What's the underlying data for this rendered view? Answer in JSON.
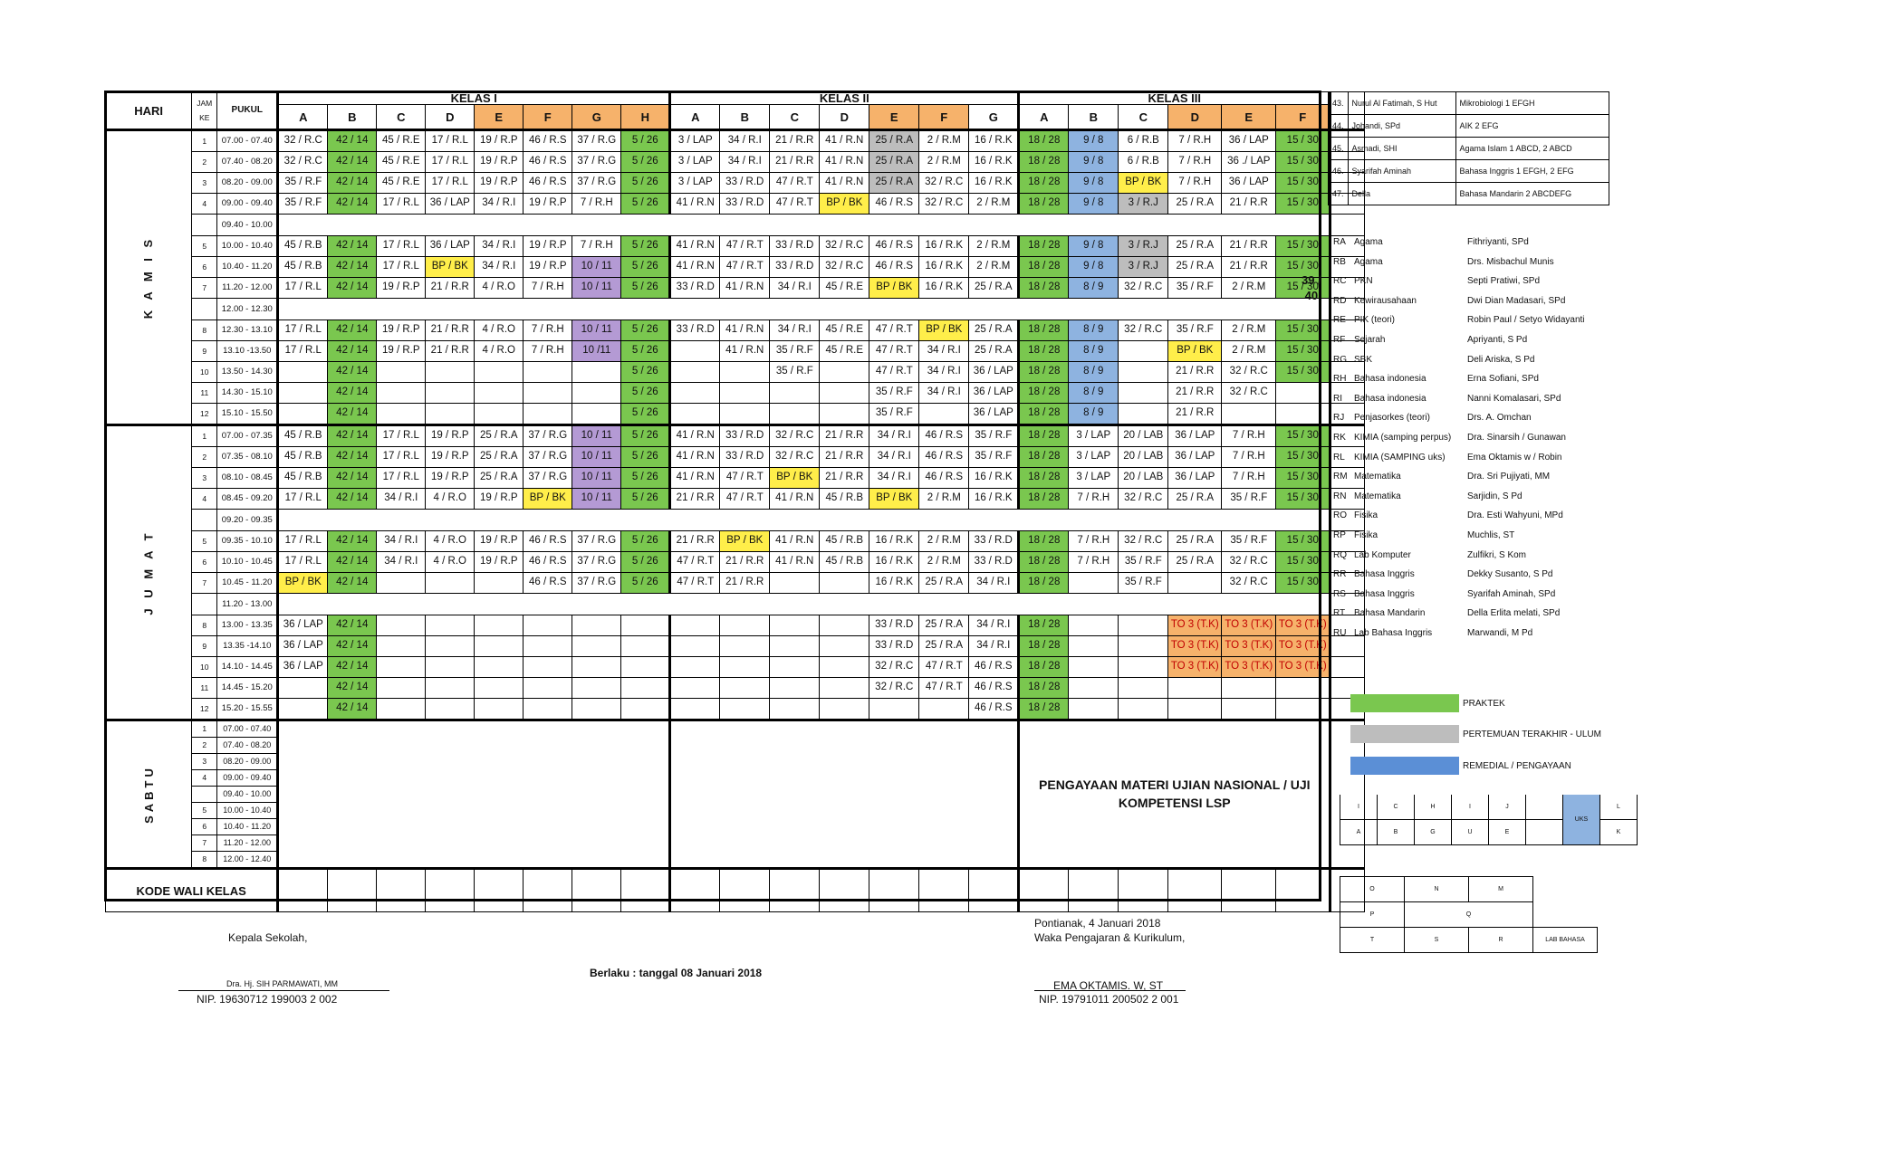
{
  "header": {
    "hari": "HARI",
    "jam": "JAM",
    "ke": "KE",
    "pukul": "PUKUL",
    "kelas1": "KELAS I",
    "kelas2": "KELAS II",
    "kelas3": "KELAS III",
    "sub1": [
      "A",
      "B",
      "C",
      "D",
      "E",
      "F",
      "G",
      "H"
    ],
    "sub2": [
      "A",
      "B",
      "C",
      "D",
      "E",
      "F",
      "G"
    ],
    "sub3": [
      "A",
      "B",
      "C",
      "D",
      "E",
      "F"
    ]
  },
  "days": {
    "kamis": "K A M I S",
    "jumat": "J U M A T",
    "sabtu": "SABTU"
  },
  "kamis_rows": [
    {
      "ke": "1",
      "pukul": "07.00 - 07.40",
      "c": [
        "32 / R.C",
        "42 / 14",
        "45 / R.E",
        "17 / R.L",
        "19 / R.P",
        "46 / R.S",
        "37 / R.G",
        "5 / 26",
        "3 / LAP",
        "34 / R.I",
        "21 / R.R",
        "41 / R.N",
        "25 / R.A",
        "2 / R.M",
        "16 / R.K",
        "18 / 28",
        "9 / 8",
        "6 / R.B",
        "7 / R.H",
        "36 / LAP",
        "15 / 30"
      ]
    },
    {
      "ke": "2",
      "pukul": "07.40 - 08.20",
      "c": [
        "32 / R.C",
        "42 / 14",
        "45 / R.E",
        "17 / R.L",
        "19 / R.P",
        "46 / R.S",
        "37 / R.G",
        "5 / 26",
        "3 / LAP",
        "34 / R.I",
        "21 / R.R",
        "41 / R.N",
        "25 / R.A",
        "2 / R.M",
        "16 / R.K",
        "18 / 28",
        "9 / 8",
        "6 / R.B",
        "7 / R.H",
        "36 ./ LAP",
        "15 / 30"
      ]
    },
    {
      "ke": "3",
      "pukul": "08.20 - 09.00",
      "c": [
        "35 / R.F",
        "42 / 14",
        "45 / R.E",
        "17 / R.L",
        "19 / R.P",
        "46 / R.S",
        "37 / R.G",
        "5 / 26",
        "3 / LAP",
        "33 / R.D",
        "47 / R.T",
        "41 / R.N",
        "25 / R.A",
        "32 / R.C",
        "16 / R.K",
        "18 / 28",
        "9 / 8",
        "BP / BK",
        "7 / R.H",
        "36 / LAP",
        "15 / 30"
      ]
    },
    {
      "ke": "4",
      "pukul": "09.00 - 09.40",
      "c": [
        "35 / R.F",
        "42 / 14",
        "17 / R.L",
        "36 / LAP",
        "34 / R.I",
        "19 / R.P",
        "7 / R.H",
        "5 / 26",
        "41 / R.N",
        "33 / R.D",
        "47 / R.T",
        "BP / BK",
        "46 / R.S",
        "32 / R.C",
        "2 / R.M",
        "18 / 28",
        "9 / 8",
        "3 / R.J",
        "25 / R.A",
        "21 / R.R",
        "15 / 30"
      ]
    },
    {
      "ke": "",
      "pukul": "09.40 - 10.00",
      "brk": true
    },
    {
      "ke": "5",
      "pukul": "10.00 - 10.40",
      "c": [
        "45 / R.B",
        "42 / 14",
        "17 / R.L",
        "36 / LAP",
        "34 / R.I",
        "19 / R.P",
        "7 / R.H",
        "5 / 26",
        "41 / R.N",
        "47 / R.T",
        "33 / R.D",
        "32 / R.C",
        "46 / R.S",
        "16 / R.K",
        "2 / R.M",
        "18 / 28",
        "9 / 8",
        "3 / R.J",
        "25 / R.A",
        "21 / R.R",
        "15 / 30"
      ]
    },
    {
      "ke": "6",
      "pukul": "10.40 - 11.20",
      "c": [
        "45 / R.B",
        "42 / 14",
        "17 / R.L",
        "BP / BK",
        "34 / R.I",
        "19 / R.P",
        "10 / 11",
        "5 / 26",
        "41 / R.N",
        "47 / R.T",
        "33 / R.D",
        "32 / R.C",
        "46 / R.S",
        "16 / R.K",
        "2 / R.M",
        "18 / 28",
        "9 / 8",
        "3 / R.J",
        "25 / R.A",
        "21 / R.R",
        "15 / 30"
      ]
    },
    {
      "ke": "7",
      "pukul": "11.20 - 12.00",
      "c": [
        "17 / R.L",
        "42 / 14",
        "19 / R.P",
        "21 / R.R",
        "4 / R.O",
        "7 / R.H",
        "10 / 11",
        "5 / 26",
        "33 / R.D",
        "41 / R.N",
        "34 / R.I",
        "45 / R.E",
        "BP / BK",
        "16 / R.K",
        "25 / R.A",
        "18 / 28",
        "8 / 9",
        "32 / R.C",
        "35 / R.F",
        "2 / R.M",
        "15 / 30"
      ]
    },
    {
      "ke": "",
      "pukul": "12.00 - 12.30",
      "brk": true
    },
    {
      "ke": "8",
      "pukul": "12.30 - 13.10",
      "c": [
        "17 / R.L",
        "42 / 14",
        "19 / R.P",
        "21 / R.R",
        "4 / R.O",
        "7 / R.H",
        "10 / 11",
        "5 / 26",
        "33 / R.D",
        "41 / R.N",
        "34 / R.I",
        "45 / R.E",
        "47 / R.T",
        "BP / BK",
        "25 / R.A",
        "18 / 28",
        "8 / 9",
        "32 / R.C",
        "35 / R.F",
        "2 / R.M",
        "15 / 30"
      ]
    },
    {
      "ke": "9",
      "pukul": "13.10 -13.50",
      "c": [
        "17 / R.L",
        "42 / 14",
        "19 / R.P",
        "21 / R.R",
        "4 / R.O",
        "7 / R.H",
        "10 /11",
        "5 / 26",
        "",
        "41 / R.N",
        "35 / R.F",
        "45 / R.E",
        "47 / R.T",
        "34 / R.I",
        "25 / R.A",
        "18 / 28",
        "8 / 9",
        "",
        "BP / BK",
        "2 / R.M",
        "15 / 30"
      ]
    },
    {
      "ke": "10",
      "pukul": "13.50 - 14.30",
      "c": [
        "",
        "42 / 14",
        "",
        "",
        "",
        "",
        "",
        "5 / 26",
        "",
        "",
        "35 / R.F",
        "",
        "47 / R.T",
        "34 / R.I",
        "36 / LAP",
        "18 / 28",
        "8 / 9",
        "",
        "21 / R.R",
        "32 / R.C",
        "15 / 30"
      ]
    },
    {
      "ke": "11",
      "pukul": "14.30 - 15.10",
      "c": [
        "",
        "42 / 14",
        "",
        "",
        "",
        "",
        "",
        "5 / 26",
        "",
        "",
        "",
        "",
        "35 / R.F",
        "34 / R.I",
        "36 / LAP",
        "18 / 28",
        "8 / 9",
        "",
        "21 / R.R",
        "32 / R.C",
        ""
      ]
    },
    {
      "ke": "12",
      "pukul": "15.10 - 15.50",
      "c": [
        "",
        "42 / 14",
        "",
        "",
        "",
        "",
        "",
        "5 / 26",
        "",
        "",
        "",
        "",
        "35 / R.F",
        "",
        "36 / LAP",
        "18 / 28",
        "8 / 9",
        "",
        "21 / R.R",
        "",
        ""
      ]
    }
  ],
  "jumat_rows": [
    {
      "ke": "1",
      "pukul": "07.00 - 07.35",
      "c": [
        "45 / R.B",
        "42 / 14",
        "17 / R.L",
        "19 / R.P",
        "25 / R.A",
        "37 / R.G",
        "10 / 11",
        "5 / 26",
        "41 / R.N",
        "33 / R.D",
        "32 / R.C",
        "21 / R.R",
        "34 / R.I",
        "46 / R.S",
        "35 / R.F",
        "18 / 28",
        "3 / LAP",
        "20 / LAB",
        "36 / LAP",
        "7 / R.H",
        "15 / 30"
      ]
    },
    {
      "ke": "2",
      "pukul": "07.35 - 08.10",
      "c": [
        "45 / R.B",
        "42 / 14",
        "17 / R.L",
        "19 / R.P",
        "25 / R.A",
        "37 / R.G",
        "10 / 11",
        "5 / 26",
        "41 / R.N",
        "33 / R.D",
        "32 / R.C",
        "21 / R.R",
        "34 / R.I",
        "46 / R.S",
        "35 / R.F",
        "18 / 28",
        "3 / LAP",
        "20 / LAB",
        "36 / LAP",
        "7 / R.H",
        "15 / 30"
      ]
    },
    {
      "ke": "3",
      "pukul": "08.10 - 08.45",
      "c": [
        "45 / R.B",
        "42 / 14",
        "17 / R.L",
        "19 / R.P",
        "25 / R.A",
        "37 / R.G",
        "10 / 11",
        "5 / 26",
        "41 / R.N",
        "47 / R.T",
        "BP / BK",
        "21 / R.R",
        "34 / R.I",
        "46 / R.S",
        "16 / R.K",
        "18 / 28",
        "3 / LAP",
        "20 / LAB",
        "36 / LAP",
        "7 / R.H",
        "15 / 30"
      ]
    },
    {
      "ke": "4",
      "pukul": "08.45 - 09.20",
      "c": [
        "17 / R.L",
        "42 / 14",
        "34 / R.I",
        "4 / R.O",
        "19 / R.P",
        "BP / BK",
        "10 / 11",
        "5 / 26",
        "21 / R.R",
        "47 / R.T",
        "41 / R.N",
        "45 / R.B",
        "BP / BK",
        "2 / R.M",
        "16 / R.K",
        "18 / 28",
        "7 / R.H",
        "32 / R.C",
        "25 / R.A",
        "35 / R.F",
        "15 / 30"
      ]
    },
    {
      "ke": "",
      "pukul": "09.20 - 09.35",
      "brk": true
    },
    {
      "ke": "5",
      "pukul": "09.35 - 10.10",
      "c": [
        "17 / R.L",
        "42 / 14",
        "34 / R.I",
        "4 / R.O",
        "19 / R.P",
        "46 / R.S",
        "37 / R.G",
        "5 / 26",
        "21 / R.R",
        "BP / BK",
        "41 / R.N",
        "45 / R.B",
        "16 / R.K",
        "2 / R.M",
        "33 / R.D",
        "18 / 28",
        "7 / R.H",
        "32 / R.C",
        "25 / R.A",
        "35 / R.F",
        "15 / 30"
      ]
    },
    {
      "ke": "6",
      "pukul": "10.10 - 10.45",
      "c": [
        "17 / R.L",
        "42 / 14",
        "34 / R.I",
        "4 / R.O",
        "19 / R.P",
        "46 / R.S",
        "37 / R.G",
        "5 / 26",
        "47 / R.T",
        "21 / R.R",
        "41 / R.N",
        "45 / R.B",
        "16 / R.K",
        "2 / R.M",
        "33 / R.D",
        "18 / 28",
        "7 / R.H",
        "35 / R.F",
        "25 / R.A",
        "32 / R.C",
        "15 / 30"
      ]
    },
    {
      "ke": "7",
      "pukul": "10.45 - 11.20",
      "c": [
        "BP / BK",
        "42 / 14",
        "",
        "",
        "",
        "46 / R.S",
        "37 / R.G",
        "5 / 26",
        "47 / R.T",
        "21 / R.R",
        "",
        "",
        "16 / R.K",
        "25 / R.A",
        "34 / R.I",
        "18 / 28",
        "",
        "35 / R.F",
        "",
        "32 / R.C",
        "15 / 30"
      ]
    },
    {
      "ke": "",
      "pukul": "11.20 - 13.00",
      "brk": true
    },
    {
      "ke": "8",
      "pukul": "13.00 - 13.35",
      "c": [
        "36 / LAP",
        "42 / 14",
        "",
        "",
        "",
        "",
        "",
        "",
        "",
        "",
        "",
        "",
        "33 / R.D",
        "25 / R.A",
        "34 / R.I",
        "18 / 28",
        "",
        "",
        "TO 3 (T.K)",
        "TO 3 (T.K)",
        "TO 3 (T.K)"
      ]
    },
    {
      "ke": "9",
      "pukul": "13.35 -14.10",
      "c": [
        "36 / LAP",
        "42 / 14",
        "",
        "",
        "",
        "",
        "",
        "",
        "",
        "",
        "",
        "",
        "33 / R.D",
        "25 / R.A",
        "34 / R.I",
        "18 / 28",
        "",
        "",
        "TO 3 (T.K)",
        "TO 3 (T.K)",
        "TO 3 (T.K)"
      ]
    },
    {
      "ke": "10",
      "pukul": "14.10 - 14.45",
      "c": [
        "36 / LAP",
        "42 / 14",
        "",
        "",
        "",
        "",
        "",
        "",
        "",
        "",
        "",
        "",
        "32 / R.C",
        "47 / R.T",
        "46 / R.S",
        "18 / 28",
        "",
        "",
        "TO 3 (T.K)",
        "TO 3 (T.K)",
        "TO 3 (T.K)"
      ]
    },
    {
      "ke": "11",
      "pukul": "14.45 - 15.20",
      "c": [
        "",
        "42 / 14",
        "",
        "",
        "",
        "",
        "",
        "",
        "",
        "",
        "",
        "",
        "32 / R.C",
        "47 / R.T",
        "46 / R.S",
        "18 / 28",
        "",
        "",
        "",
        "",
        ""
      ]
    },
    {
      "ke": "12",
      "pukul": "15.20 - 15.55",
      "c": [
        "",
        "42 / 14",
        "",
        "",
        "",
        "",
        "",
        "",
        "",
        "",
        "",
        "",
        "",
        "",
        "46 / R.S",
        "18 / 28",
        "",
        "",
        "",
        "",
        ""
      ]
    }
  ],
  "sabtu_rows": [
    {
      "ke": "1",
      "pukul": "07.00 - 07.40"
    },
    {
      "ke": "2",
      "pukul": "07.40 - 08.20"
    },
    {
      "ke": "3",
      "pukul": "08.20 - 09.00"
    },
    {
      "ke": "4",
      "pukul": "09.00 - 09.40"
    },
    {
      "ke": "",
      "pukul": "09.40 - 10.00"
    },
    {
      "ke": "5",
      "pukul": "10.00 - 10.40"
    },
    {
      "ke": "6",
      "pukul": "10.40 - 11.20"
    },
    {
      "ke": "7",
      "pukul": "11.20 - 12.00"
    },
    {
      "ke": "8",
      "pukul": "12.00 - 12.40"
    }
  ],
  "pengayaan": "PENGAYAAN MATERI UJIAN NASIONAL / UJI KOMPETENSI LSP",
  "kode_wali": "KODE WALI KELAS",
  "side_count": "39 / 40",
  "teachers": [
    {
      "no": "43.",
      "name": "Nurul Al Fatimah, S Hut",
      "subj": "Mikrobiologi 1 EFGH"
    },
    {
      "no": "44.",
      "name": "Johandi, SPd",
      "subj": "AIK 2 EFG"
    },
    {
      "no": "45.",
      "name": "Asmadi, SHI",
      "subj": "Agama Islam 1 ABCD, 2 ABCD"
    },
    {
      "no": "46.",
      "name": "Syarifah Aminah",
      "subj": "Bahasa Inggris 1 EFGH, 2 EFG"
    },
    {
      "no": "47.",
      "name": "Della",
      "subj": "Bahasa Mandarin 2 ABCDEFG"
    }
  ],
  "subjects": [
    {
      "code": "RA",
      "subj": "Agama",
      "teacher": "Fithriyanti, SPd"
    },
    {
      "code": "RB",
      "subj": "Agama",
      "teacher": "Drs. Misbachul Munis"
    },
    {
      "code": "RC",
      "subj": "PKN",
      "teacher": "Septi Pratiwi, SPd"
    },
    {
      "code": "RD",
      "subj": "Kewirausahaan",
      "teacher": "Dwi Dian Madasari, SPd"
    },
    {
      "code": "RE",
      "subj": "PIK (teori)",
      "teacher": "Robin Paul / Setyo Widayanti"
    },
    {
      "code": "RF",
      "subj": "Sejarah",
      "teacher": "Apriyanti, S Pd"
    },
    {
      "code": "RG",
      "subj": "SBK",
      "teacher": "Deli Ariska, S Pd"
    },
    {
      "code": "RH",
      "subj": "Bahasa indonesia",
      "teacher": "Erna Sofiani, SPd"
    },
    {
      "code": "RI",
      "subj": "Bahasa indonesia",
      "teacher": "Nanni Komalasari, SPd"
    },
    {
      "code": "RJ",
      "subj": "Penjasorkes (teori)",
      "teacher": "Drs. A. Omchan"
    },
    {
      "code": "RK",
      "subj": "KIMIA  (samping perpus)",
      "teacher": "Dra. Sinarsih / Gunawan"
    },
    {
      "code": "RL",
      "subj": "KIMIA (SAMPING uks)",
      "teacher": "Ema Oktamis w / Robin"
    },
    {
      "code": "RM",
      "subj": "Matematika",
      "teacher": "Dra. Sri Pujiyati, MM"
    },
    {
      "code": "RN",
      "subj": "Matematika",
      "teacher": "Sarjidin, S Pd"
    },
    {
      "code": "RO",
      "subj": "Fisika",
      "teacher": "Dra. Esti Wahyuni, MPd"
    },
    {
      "code": "RP",
      "subj": "Fisika",
      "teacher": "Muchlis, ST"
    },
    {
      "code": "RQ",
      "subj": "Lab Komputer",
      "teacher": "Zulfikri, S Kom"
    },
    {
      "code": "RR",
      "subj": "Bahasa Inggris",
      "teacher": "Dekky Susanto, S Pd"
    },
    {
      "code": "RS",
      "subj": "Bahasa Inggris",
      "teacher": "Syarifah Aminah, SPd"
    },
    {
      "code": "RT",
      "subj": "Bahasa Mandarin",
      "teacher": "Della Erlita melati, SPd"
    },
    {
      "code": "RU",
      "subj": "Lab Bahasa Inggris",
      "teacher": "Marwandi, M Pd"
    }
  ],
  "legend": {
    "praktek": "PRAKTEK",
    "pertemuan": "PERTEMUAN TERAKHIR - ULUM",
    "remedial": "REMEDIAL / PENGAYAAN"
  },
  "colors": {
    "praktek": "#7ac74f",
    "pertemuan": "#bdbdbd",
    "remedial": "#5b8fd6",
    "yellow": "#ffee4a",
    "purple": "#b49ad4",
    "orange": "#f6b26b"
  },
  "mini1": {
    "top": [
      "I",
      "C",
      "H",
      "I",
      "J",
      "",
      "UKS",
      "L"
    ],
    "bottom": [
      "A",
      "B",
      "G",
      "U",
      "E",
      "",
      "",
      "K"
    ]
  },
  "mini2": {
    "r1": [
      "O",
      "N",
      "M",
      ""
    ],
    "r2": [
      "P",
      "Q",
      ""
    ],
    "r3": [
      "T",
      "S",
      "R",
      "LAB BAHASA"
    ]
  },
  "footer": {
    "kepala": "Kepala Sekolah,",
    "kepala_name": "Dra. Hj. SIH PARMAWATI, MM",
    "kepala_nip": "NIP. 19630712 199003 2 002",
    "berlaku": "Berlaku : tanggal 08 Januari 2018",
    "place_date": "Pontianak, 4 Januari 2018",
    "waka": "Waka Pengajaran & Kurikulum,",
    "waka_name": "EMA OKTAMIS. W, ST",
    "waka_nip": "NIP. 19791011 200502 2 001"
  }
}
